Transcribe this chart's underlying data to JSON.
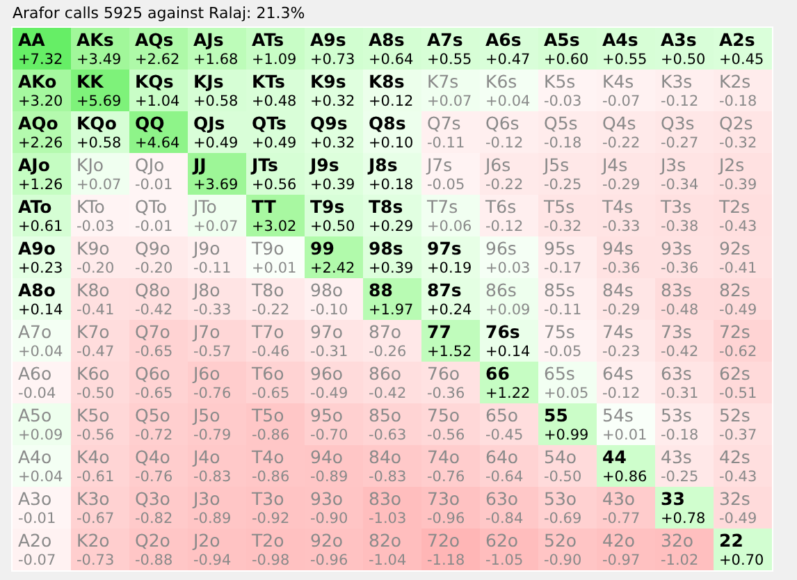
{
  "chart_data": {
    "type": "heatmap",
    "title": "Arafor calls 5925 against Ralaj: 21.3%",
    "categories": [
      null,
      null,
      null,
      null,
      null,
      null,
      null,
      null,
      null,
      null,
      null,
      null,
      null
    ],
    "y_categories": [
      null,
      null,
      null,
      null,
      null,
      null,
      null,
      null,
      null,
      null,
      null,
      null,
      null
    ],
    "cells": [
      [
        7.32,
        3.49,
        2.62,
        1.68,
        1.09,
        0.73,
        0.64,
        0.55,
        0.47,
        0.6,
        0.55,
        0.5,
        0.45
      ],
      [
        3.2,
        5.69,
        1.04,
        0.58,
        0.48,
        0.32,
        0.12,
        0.07,
        0.04,
        -0.03,
        -0.07,
        -0.12,
        -0.18
      ],
      [
        2.26,
        0.58,
        4.64,
        0.49,
        0.49,
        0.32,
        0.1,
        -0.11,
        -0.12,
        -0.18,
        -0.22,
        -0.27,
        -0.32
      ],
      [
        1.26,
        0.07,
        -0.01,
        3.69,
        0.56,
        0.39,
        0.18,
        -0.05,
        -0.22,
        -0.25,
        -0.29,
        -0.34,
        -0.39
      ],
      [
        0.61,
        -0.03,
        -0.01,
        0.07,
        3.02,
        0.5,
        0.29,
        0.06,
        -0.12,
        -0.32,
        -0.33,
        -0.38,
        -0.43
      ],
      [
        0.23,
        -0.2,
        -0.2,
        -0.11,
        0.01,
        2.42,
        0.39,
        0.19,
        0.03,
        -0.17,
        -0.36,
        -0.36,
        -0.41
      ],
      [
        0.14,
        -0.41,
        -0.42,
        -0.33,
        -0.22,
        -0.1,
        1.97,
        0.24,
        0.09,
        -0.11,
        -0.29,
        -0.48,
        -0.49
      ],
      [
        0.04,
        -0.47,
        -0.65,
        -0.57,
        -0.46,
        -0.31,
        -0.26,
        1.52,
        0.14,
        -0.05,
        -0.23,
        -0.42,
        -0.62
      ],
      [
        -0.04,
        -0.5,
        -0.65,
        -0.76,
        -0.65,
        -0.49,
        -0.42,
        -0.36,
        1.22,
        0.05,
        -0.12,
        -0.31,
        -0.51
      ],
      [
        0.09,
        -0.56,
        -0.72,
        -0.79,
        -0.86,
        -0.7,
        -0.63,
        -0.56,
        -0.45,
        0.99,
        0.01,
        -0.18,
        -0.37
      ],
      [
        0.04,
        -0.61,
        -0.76,
        -0.83,
        -0.86,
        -0.89,
        -0.83,
        -0.76,
        -0.64,
        -0.5,
        0.86,
        -0.25,
        -0.43
      ],
      [
        -0.01,
        -0.67,
        -0.82,
        -0.89,
        -0.92,
        -0.9,
        -1.03,
        -0.96,
        -0.84,
        -0.69,
        -0.77,
        0.78,
        -0.49
      ],
      [
        -0.07,
        -0.73,
        -0.88,
        -0.94,
        -0.98,
        -0.96,
        -1.04,
        -1.18,
        -1.05,
        -0.9,
        -0.97,
        -1.02,
        0.7
      ]
    ],
    "cell_labels": [
      [
        "+7.32",
        "+3.49",
        "+2.62",
        "+1.68",
        "+1.09",
        "+0.73",
        "+0.64",
        "+0.55",
        "+0.47",
        "+0.60",
        "+0.55",
        "+0.50",
        "+0.45"
      ],
      [
        "+3.20",
        "+5.69",
        "+1.04",
        "+0.58",
        "+0.48",
        "+0.32",
        "+0.12",
        "+0.07",
        "+0.04",
        "-0.03",
        "-0.07",
        "-0.12",
        "-0.18"
      ],
      [
        "+2.26",
        "+0.58",
        "+4.64",
        "+0.49",
        "+0.49",
        "+0.32",
        "+0.10",
        "-0.11",
        "-0.12",
        "-0.18",
        "-0.22",
        "-0.27",
        "-0.32"
      ],
      [
        "+1.26",
        "+0.07",
        "-0.01",
        "+3.69",
        "+0.56",
        "+0.39",
        "+0.18",
        "-0.05",
        "-0.22",
        "-0.25",
        "-0.29",
        "-0.34",
        "-0.39"
      ],
      [
        "+0.61",
        "-0.03",
        "-0.01",
        "+0.07",
        "+3.02",
        "+0.50",
        "+0.29",
        "+0.06",
        "-0.12",
        "-0.32",
        "-0.33",
        "-0.38",
        "-0.43"
      ],
      [
        "+0.23",
        "-0.20",
        "-0.20",
        "-0.11",
        "+0.01",
        "+2.42",
        "+0.39",
        "+0.19",
        "+0.03",
        "-0.17",
        "-0.36",
        "-0.36",
        "-0.41"
      ],
      [
        "+0.14",
        "-0.41",
        "-0.42",
        "-0.33",
        "-0.22",
        "-0.10",
        "+1.97",
        "+0.24",
        "+0.09",
        "-0.11",
        "-0.29",
        "-0.48",
        "-0.49"
      ],
      [
        "+0.04",
        "-0.47",
        "-0.65",
        "-0.57",
        "-0.46",
        "-0.31",
        "-0.26",
        "+1.52",
        "+0.14",
        "-0.05",
        "-0.23",
        "-0.42",
        "-0.62"
      ],
      [
        "-0.04",
        "-0.50",
        "-0.65",
        "-0.76",
        "-0.65",
        "-0.49",
        "-0.42",
        "-0.36",
        "+1.22",
        "+0.05",
        "-0.12",
        "-0.31",
        "-0.51"
      ],
      [
        "+0.09",
        "-0.56",
        "-0.72",
        "-0.79",
        "-0.86",
        "-0.70",
        "-0.63",
        "-0.56",
        "-0.45",
        "+0.99",
        "+0.01",
        "-0.18",
        "-0.37"
      ],
      [
        "+0.04",
        "-0.61",
        "-0.76",
        "-0.83",
        "-0.86",
        "-0.89",
        "-0.83",
        "-0.76",
        "-0.64",
        "-0.50",
        "+0.86",
        "-0.25",
        "-0.43"
      ],
      [
        "-0.01",
        "-0.67",
        "-0.82",
        "-0.89",
        "-0.92",
        "-0.90",
        "-1.03",
        "-0.96",
        "-0.84",
        "-0.69",
        "-0.77",
        "+0.78",
        "-0.49"
      ],
      [
        "-0.07",
        "-0.73",
        "-0.88",
        "-0.94",
        "-0.98",
        "-0.96",
        "-1.04",
        "-1.18",
        "-1.05",
        "-0.90",
        "-0.97",
        "-1.02",
        "+0.70"
      ]
    ],
    "annotations": [
      "AA",
      "AKs",
      "AQs",
      "AJs",
      "ATs",
      "A9s",
      "A8s",
      "A7s",
      "A6s",
      "A5s",
      "A4s",
      "A3s",
      "A2s",
      "AKo",
      "KK",
      "KQs",
      "KJs",
      "KTs",
      "K9s",
      "K8s",
      "K7s",
      "K6s",
      "K5s",
      "K4s",
      "K3s",
      "K2s",
      "AQo",
      "KQo",
      "QQ",
      "QJs",
      "QTs",
      "Q9s",
      "Q8s",
      "Q7s",
      "Q6s",
      "Q5s",
      "Q4s",
      "Q3s",
      "Q2s",
      "AJo",
      "KJo",
      "QJo",
      "JJ",
      "JTs",
      "J9s",
      "J8s",
      "J7s",
      "J6s",
      "J5s",
      "J4s",
      "J3s",
      "J2s",
      "ATo",
      "KTo",
      "QTo",
      "JTo",
      "TT",
      "T9s",
      "T8s",
      "T7s",
      "T6s",
      "T5s",
      "T4s",
      "T3s",
      "T2s",
      "A9o",
      "K9o",
      "Q9o",
      "J9o",
      "T9o",
      "99",
      "98s",
      "97s",
      "96s",
      "95s",
      "94s",
      "93s",
      "92s",
      "A8o",
      "K8o",
      "Q8o",
      "J8o",
      "T8o",
      "98o",
      "88",
      "87s",
      "86s",
      "85s",
      "84s",
      "83s",
      "82s",
      "A7o",
      "K7o",
      "Q7o",
      "J7o",
      "T7o",
      "97o",
      "87o",
      "77",
      "76s",
      "75s",
      "74s",
      "73s",
      "72s",
      "A6o",
      "K6o",
      "Q6o",
      "J6o",
      "T6o",
      "96o",
      "86o",
      "76o",
      "66",
      "65s",
      "64s",
      "63s",
      "62s",
      "A5o",
      "K5o",
      "Q5o",
      "J5o",
      "T5o",
      "95o",
      "85o",
      "75o",
      "65o",
      "55",
      "54s",
      "53s",
      "52s",
      "A4o",
      "K4o",
      "Q4o",
      "J4o",
      "T4o",
      "94o",
      "84o",
      "74o",
      "64o",
      "54o",
      "44",
      "43s",
      "42s",
      "A3o",
      "K3o",
      "Q3o",
      "J3o",
      "T3o",
      "93o",
      "83o",
      "73o",
      "63o",
      "53o",
      "43o",
      "33",
      "32s",
      "A2o",
      "K2o",
      "Q2o",
      "J2o",
      "T2o",
      "92o",
      "82o",
      "72o",
      "62o",
      "52o",
      "42o",
      "32o",
      "22"
    ]
  }
}
